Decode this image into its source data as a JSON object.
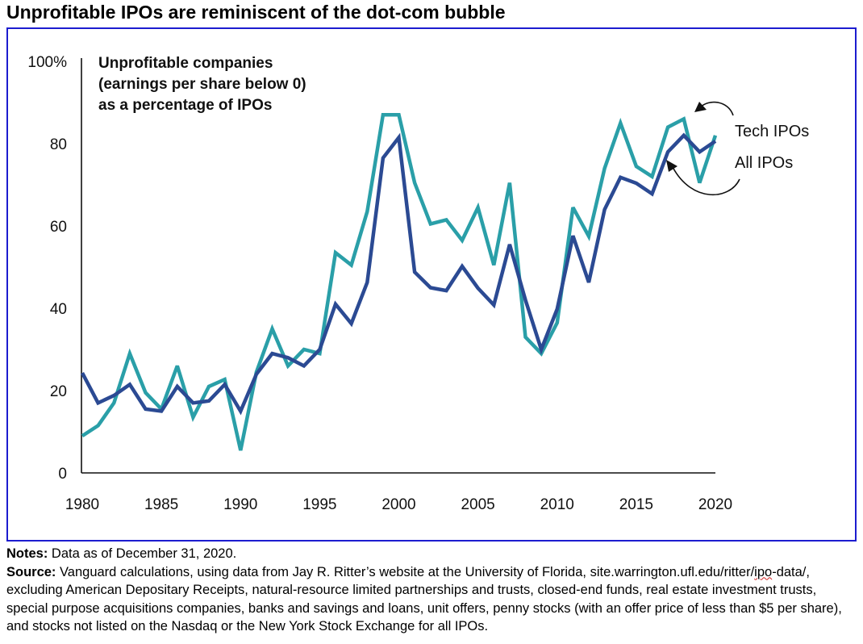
{
  "title": "Unprofitable IPOs are reminiscent of the dot-com bubble",
  "notes": {
    "notes_label": "Notes:",
    "notes_text": " Data as of December 31, 2020.",
    "source_label": "Source:",
    "source_text_1": " Vanguard calculations, using data from Jay R. Ritter’s website at the University of Florida, site.warrington.ufl.edu/ritter/",
    "source_underlined": "ipo",
    "source_text_2": "-data/, excluding American Depositary Receipts, natural-resource limited partnerships and trusts, closed-end funds, real estate investment trusts, special purpose acquisitions companies, banks and savings and loans, unit offers, penny stocks (with an offer price of less than $5 per share), and stocks not listed on the Nasdaq or the New York Stock Exchange for all IPOs."
  },
  "chart_data": {
    "type": "line",
    "title": "Unprofitable IPOs are reminiscent of the dot-com bubble",
    "ylabel_lines": [
      "Unprofitable companies",
      "(earnings per share below 0)",
      "as a percentage of IPOs"
    ],
    "xlabel": "",
    "ylim": [
      0,
      100
    ],
    "xlim": [
      1980,
      2020
    ],
    "yticks": [
      {
        "value": 0,
        "label": "0"
      },
      {
        "value": 20,
        "label": "20"
      },
      {
        "value": 40,
        "label": "40"
      },
      {
        "value": 60,
        "label": "60"
      },
      {
        "value": 80,
        "label": "80"
      },
      {
        "value": 100,
        "label": "100%"
      }
    ],
    "xticks": [
      {
        "value": 1980,
        "label": "1980"
      },
      {
        "value": 1985,
        "label": "1985"
      },
      {
        "value": 1990,
        "label": "1990"
      },
      {
        "value": 1995,
        "label": "1995"
      },
      {
        "value": 2000,
        "label": "2000"
      },
      {
        "value": 2005,
        "label": "2005"
      },
      {
        "value": 2010,
        "label": "2010"
      },
      {
        "value": 2015,
        "label": "2015"
      },
      {
        "value": 2020,
        "label": "2020"
      }
    ],
    "grid": false,
    "legend_placement": "right",
    "x": [
      1980,
      1981,
      1982,
      1983,
      1984,
      1985,
      1986,
      1987,
      1988,
      1989,
      1990,
      1991,
      1992,
      1993,
      1994,
      1995,
      1996,
      1997,
      1998,
      1999,
      2000,
      2001,
      2002,
      2003,
      2004,
      2005,
      2006,
      2007,
      2008,
      2009,
      2010,
      2011,
      2012,
      2013,
      2014,
      2015,
      2016,
      2017,
      2018,
      2019,
      2020
    ],
    "series": [
      {
        "name": "Tech IPOs",
        "color": "#2a9fa8",
        "values": [
          9,
          11.5,
          17,
          29,
          19.5,
          15.5,
          26,
          13.5,
          21,
          22.7,
          5.5,
          24.5,
          35,
          26,
          30,
          29,
          53.5,
          50.5,
          63.5,
          87,
          87,
          70.5,
          60.5,
          61.5,
          56.5,
          64.5,
          50.5,
          70.5,
          33,
          29,
          36.5,
          64.5,
          57.5,
          74,
          85,
          74.5,
          72,
          84,
          86,
          70.5,
          82
        ]
      },
      {
        "name": "All IPOs",
        "color": "#2b4a93",
        "values": [
          24.3,
          17,
          18.8,
          21.5,
          15.5,
          15,
          21,
          17,
          17.5,
          21.5,
          15,
          24,
          29,
          28,
          26,
          30,
          41,
          36.3,
          46.3,
          76.5,
          81.5,
          48.8,
          45,
          44.3,
          50.2,
          44.9,
          40.8,
          55.5,
          42,
          30,
          39.8,
          57.6,
          46.3,
          64,
          71.8,
          70.4,
          67.8,
          78,
          82,
          78,
          80.6
        ]
      }
    ],
    "annotations": [
      {
        "text": "Tech IPOs",
        "series": "Tech IPOs"
      },
      {
        "text": "All IPOs",
        "series": "All IPOs"
      }
    ]
  }
}
